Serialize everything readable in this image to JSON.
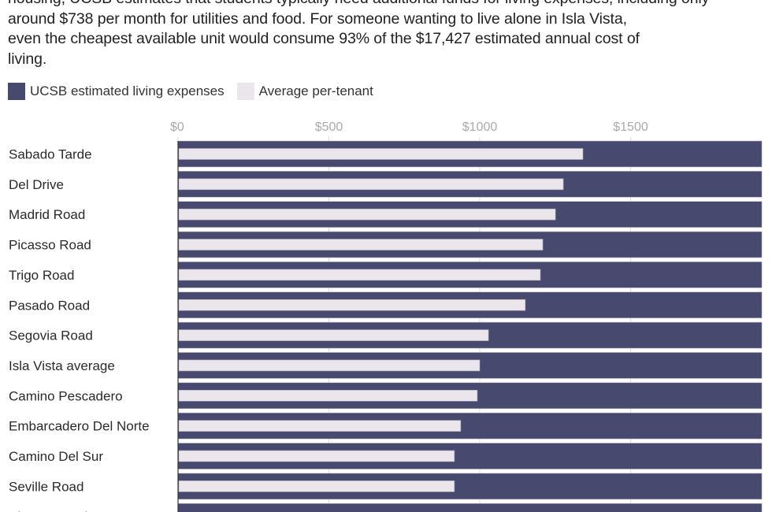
{
  "description": {
    "lines": [
      "housing, UCSB estimates that students typically need additional funds for living expenses, including only",
      "around $738 per month for utilities and food. For someone wanting to live alone in Isla Vista,",
      "even the cheapest available unit would consume 93% of the $17,427 estimated annual cost of",
      "living."
    ]
  },
  "colors": {
    "ucsb": "#474a6e",
    "tenant": "#ebe5ec",
    "gridline": "#dddddd"
  },
  "chart_data": {
    "type": "bar",
    "orientation": "horizontal",
    "title": "",
    "xlabel": "",
    "ylabel": "",
    "xlim": [
      0,
      1950
    ],
    "x_ticks": [
      0,
      500,
      1000,
      1500
    ],
    "x_tick_labels": [
      "$0",
      "$500",
      "$1000",
      "$1500"
    ],
    "grid": true,
    "legend_position": "top-left",
    "categories": [
      "Sabado Tarde",
      "Del Drive",
      "Madrid Road",
      "Picasso Road",
      "Trigo Road",
      "Pasado Road",
      "Segovia Road",
      "Isla Vista average",
      "Camino Pescadero",
      "Embarcadero Del Norte",
      "Camino Del Sur",
      "Seville Road",
      "Abrego Road"
    ],
    "series": [
      {
        "name": "UCSB estimated living expenses",
        "color": "#474a6e",
        "values": [
          1935,
          1935,
          1935,
          1935,
          1935,
          1935,
          1935,
          1935,
          1935,
          1935,
          1935,
          1935,
          1935
        ]
      },
      {
        "name": "Average per-tenant",
        "color": "#ebe5ec",
        "values": [
          1342,
          1277,
          1251,
          1209,
          1201,
          1151,
          1029,
          1000,
          992,
          937,
          916,
          916,
          null
        ]
      }
    ]
  }
}
